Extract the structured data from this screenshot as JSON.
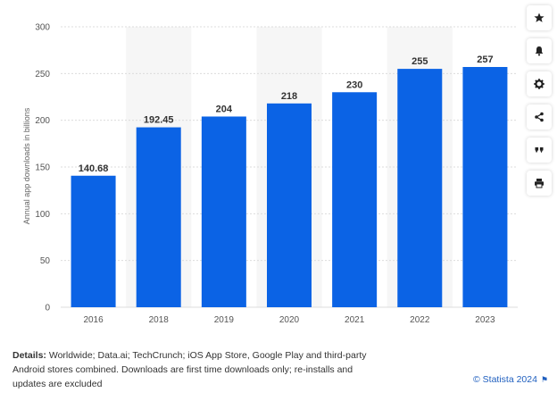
{
  "chart_data": {
    "type": "bar",
    "categories": [
      "2016",
      "2018",
      "2019",
      "2020",
      "2021",
      "2022",
      "2023"
    ],
    "values": [
      140.68,
      192.45,
      204,
      218,
      230,
      255,
      257
    ],
    "value_labels": [
      "140.68",
      "192.45",
      "204",
      "218",
      "230",
      "255",
      "257"
    ],
    "ylabel": "Annual app downloads in billions",
    "ylim": [
      0,
      300
    ],
    "yticks": [
      0,
      50,
      100,
      150,
      200,
      250,
      300
    ],
    "grid": true,
    "bar_color": "#0b63e5",
    "alternate_band_color": "#f6f6f6"
  },
  "toolbar": {
    "buttons": [
      "star-icon",
      "bell-icon",
      "gear-icon",
      "share-icon",
      "quote-icon",
      "print-icon"
    ]
  },
  "footer": {
    "details_label": "Details:",
    "details_text": " Worldwide; Data.ai; TechCrunch; iOS App Store, Google Play and third-party Android stores combined. Downloads are first time downloads only; re-installs and updates are excluded",
    "copyright": "© Statista 2024"
  }
}
